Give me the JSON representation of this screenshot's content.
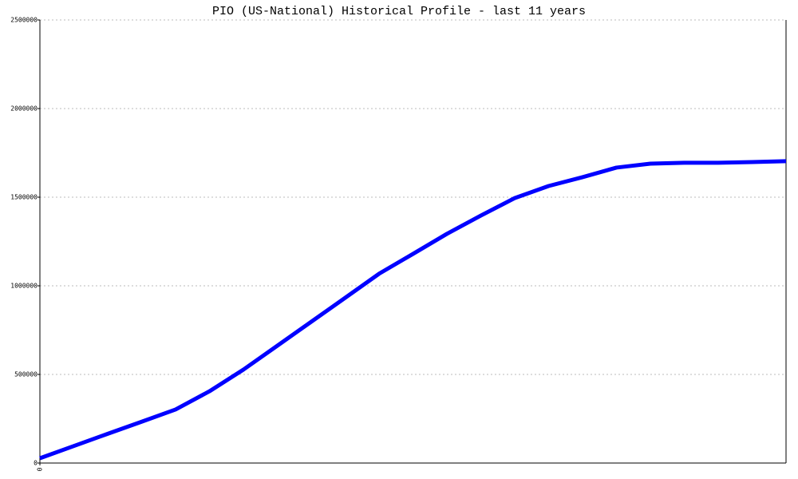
{
  "chart_data": {
    "type": "line",
    "title": "PIO (US-National) Historical Profile - last 11 years",
    "x": [
      0,
      1,
      2,
      3,
      4,
      5,
      6,
      7,
      8,
      9,
      10,
      11,
      12,
      13,
      14,
      15,
      16,
      17,
      18,
      19,
      20,
      21,
      22
    ],
    "series": [
      {
        "color": "#0000ff",
        "values": [
          27000,
          96000,
          165000,
          233000,
          302000,
          405000,
          527000,
          662000,
          797000,
          932000,
          1068000,
          1180000,
          1293000,
          1396000,
          1495000,
          1563000,
          1613000,
          1667000,
          1689000,
          1694000,
          1694000,
          1698000,
          1703000
        ]
      }
    ],
    "xlim": [
      0,
      22
    ],
    "xticks": [
      0
    ],
    "ylim": [
      0,
      2500000
    ],
    "yticks": [
      0,
      500000,
      1000000,
      1500000,
      2000000,
      2500000
    ],
    "grid": true
  }
}
